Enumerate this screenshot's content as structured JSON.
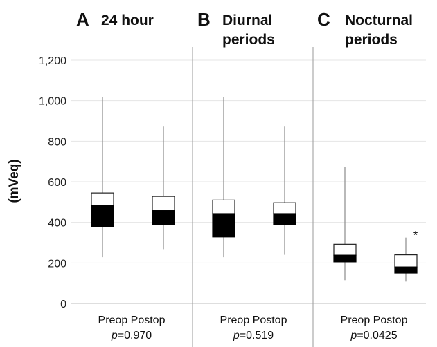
{
  "chart_data": {
    "type": "box",
    "ylabel": "(mVeq)",
    "ylim": [
      0,
      1200
    ],
    "yticks": [
      "0",
      "200",
      "400",
      "600",
      "800",
      "1,000",
      "1,200"
    ],
    "grid": true,
    "panels": [
      {
        "letter": "A",
        "title_lines": [
          "24 hour"
        ],
        "categories": [
          "Preop",
          "Postop"
        ],
        "xlabel": "Preop Postop",
        "p_label": "p",
        "p_value": "=0.970",
        "boxes": [
          {
            "min": 228,
            "q1": 380,
            "median": 485,
            "q3": 545,
            "max": 1017
          },
          {
            "min": 268,
            "q1": 390,
            "median": 458,
            "q3": 528,
            "max": 872
          }
        ],
        "marks": [
          "",
          ""
        ]
      },
      {
        "letter": "B",
        "title_lines": [
          "Diurnal",
          "periods"
        ],
        "categories": [
          "Preop",
          "Postop"
        ],
        "xlabel": "Preop Postop",
        "p_label": "p",
        "p_value": "=0.519",
        "boxes": [
          {
            "min": 228,
            "q1": 328,
            "median": 443,
            "q3": 510,
            "max": 1017
          },
          {
            "min": 240,
            "q1": 390,
            "median": 443,
            "q3": 497,
            "max": 872
          }
        ],
        "marks": [
          "",
          ""
        ]
      },
      {
        "letter": "C",
        "title_lines": [
          "Nocturnal",
          "periods"
        ],
        "categories": [
          "Preop",
          "Postop"
        ],
        "xlabel": "Preop Postop",
        "p_label": "p",
        "p_value": "=0.0425",
        "boxes": [
          {
            "min": 115,
            "q1": 205,
            "median": 238,
            "q3": 292,
            "max": 672
          },
          {
            "min": 108,
            "q1": 150,
            "median": 180,
            "q3": 240,
            "max": 325
          }
        ],
        "marks": [
          "",
          "*"
        ]
      }
    ]
  }
}
